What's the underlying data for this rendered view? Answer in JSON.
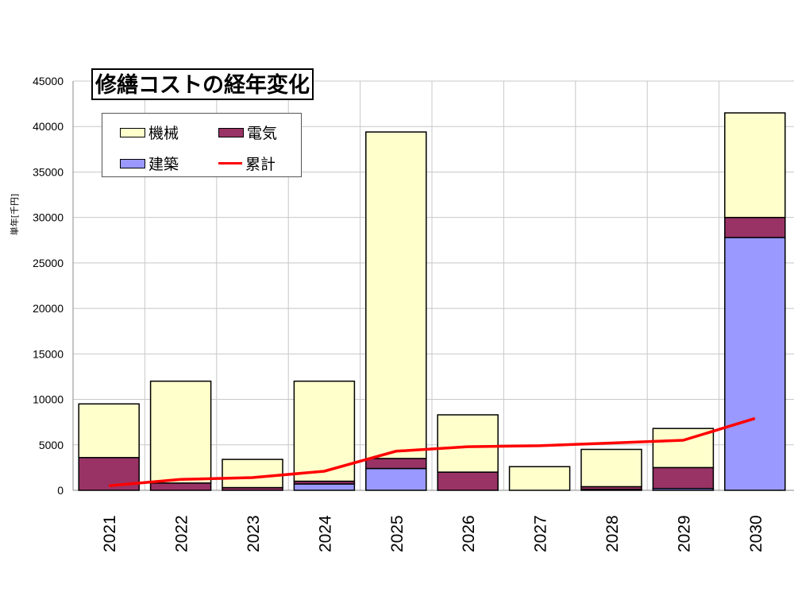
{
  "chart_data": {
    "type": "bar",
    "stacked": true,
    "title": "修繕コストの経年変化",
    "ylabel": "単年[千円]",
    "xlabel": "",
    "ylim": [
      0,
      45000
    ],
    "yticks": [
      0,
      5000,
      10000,
      15000,
      20000,
      25000,
      30000,
      35000,
      40000,
      45000
    ],
    "grid": true,
    "legend_position": "top-left",
    "categories": [
      "2021",
      "2022",
      "2023",
      "2024",
      "2025",
      "2026",
      "2027",
      "2028",
      "2029",
      "2030"
    ],
    "series": [
      {
        "name": "建築",
        "color": "#9999ff",
        "values": [
          0,
          0,
          0,
          700,
          2400,
          0,
          0,
          100,
          200,
          27800
        ]
      },
      {
        "name": "電気",
        "color": "#993366",
        "values": [
          3600,
          800,
          300,
          300,
          1100,
          2000,
          0,
          300,
          2300,
          2200
        ]
      },
      {
        "name": "機械",
        "color": "#ffffcc",
        "values": [
          5900,
          11200,
          3100,
          11000,
          35900,
          6300,
          2600,
          4100,
          4300,
          11500
        ]
      }
    ],
    "line_series": {
      "name": "累計",
      "color": "#ff0000",
      "values": [
        500,
        1200,
        1400,
        2100,
        4300,
        4800,
        4900,
        5200,
        5500,
        7900
      ]
    },
    "legend_order": [
      "機械",
      "電気",
      "建築",
      "累計"
    ]
  }
}
